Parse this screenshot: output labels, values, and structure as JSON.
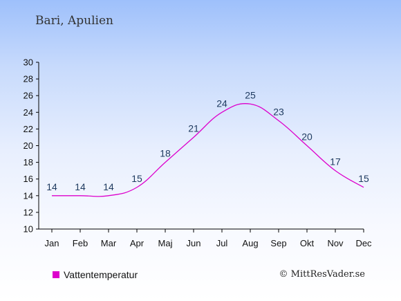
{
  "colors": {
    "series": "#dd00cc",
    "axis": "#000000",
    "label": "#1e3a5f"
  },
  "chart_data": {
    "type": "line",
    "title": "Bari, Apulien",
    "xlabel": "",
    "ylabel": "",
    "categories": [
      "Jan",
      "Feb",
      "Mar",
      "Apr",
      "Maj",
      "Jun",
      "Jul",
      "Aug",
      "Sep",
      "Okt",
      "Nov",
      "Dec"
    ],
    "series": [
      {
        "name": "Vattentemperatur",
        "values": [
          14,
          14,
          14,
          15,
          18,
          21,
          24,
          25,
          23,
          20,
          17,
          15
        ],
        "data_labels": [
          "14",
          "14",
          "14",
          "15",
          "18",
          "21",
          "24",
          "25",
          "23",
          "20",
          "17",
          "15"
        ]
      }
    ],
    "ylim": [
      10,
      30
    ],
    "yticks": [
      "10",
      "12",
      "14",
      "16",
      "18",
      "20",
      "22",
      "24",
      "26",
      "28",
      "30"
    ],
    "grid": false,
    "legend_position": "bottom-left"
  },
  "credit": "© MittResVader.se"
}
